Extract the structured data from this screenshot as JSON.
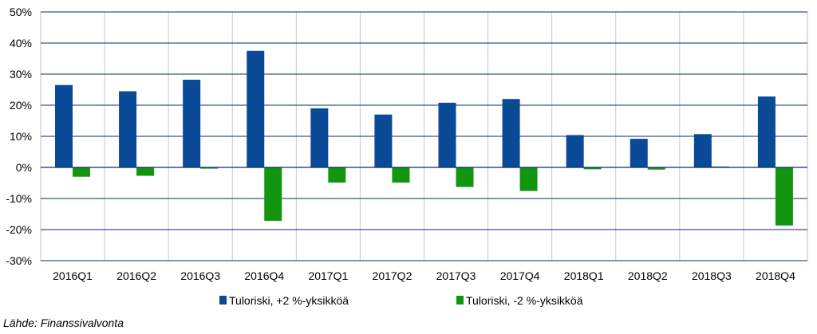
{
  "chart_data": {
    "type": "bar",
    "categories": [
      "2016Q1",
      "2016Q2",
      "2016Q3",
      "2016Q4",
      "2017Q1",
      "2017Q2",
      "2017Q3",
      "2017Q4",
      "2018Q1",
      "2018Q2",
      "2018Q3",
      "2018Q4"
    ],
    "series": [
      {
        "name": "Tuloriski, +2 %-yksikköä",
        "color": "#0a4a96",
        "values": [
          26.5,
          24.5,
          28.2,
          37.5,
          19.0,
          17.0,
          20.8,
          22.0,
          10.4,
          9.2,
          10.7,
          22.8
        ]
      },
      {
        "name": "Tuloriski, -2 %-yksikköä",
        "color": "#129612",
        "values": [
          -3.0,
          -2.7,
          -0.4,
          -17.2,
          -4.9,
          -4.9,
          -6.3,
          -7.6,
          -0.6,
          -0.7,
          0.3,
          -18.7
        ]
      }
    ],
    "ylim": [
      -30,
      50
    ],
    "yticks": [
      -30,
      -20,
      -10,
      0,
      10,
      20,
      30,
      40,
      50
    ],
    "ytick_labels": [
      "-30%",
      "-20%",
      "-10%",
      "0%",
      "10%",
      "20%",
      "30%",
      "40%",
      "50%"
    ],
    "grid": true,
    "legend_position": "bottom",
    "title": "",
    "xlabel": "",
    "ylabel": ""
  },
  "source_text": "Lähde: Finanssivalvonta"
}
